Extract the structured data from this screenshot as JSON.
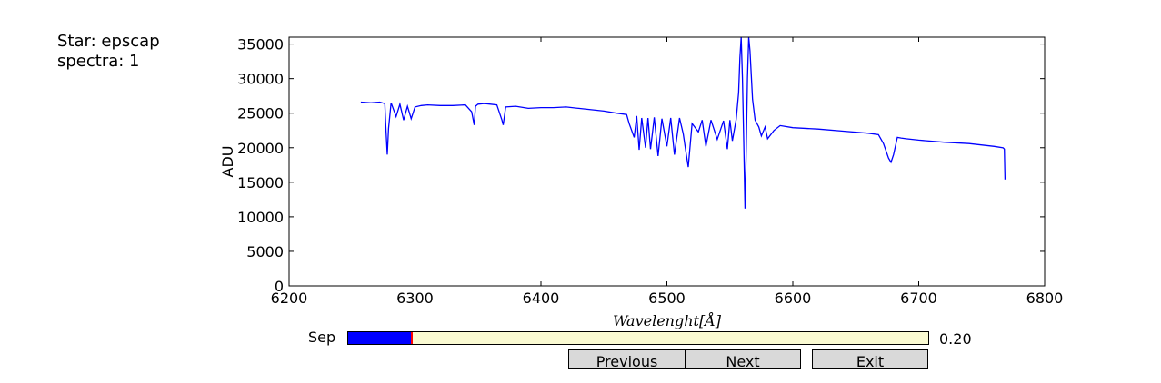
{
  "info": {
    "star": "Star: epscap",
    "spectra": "spectra: 1"
  },
  "slider": {
    "label": "Sep",
    "value_text": "0.20",
    "fraction": 0.11,
    "fill_color": "#0000ff",
    "marker_color": "#ff0000",
    "track_color": "#fafad2"
  },
  "buttons": {
    "previous": "Previous",
    "next": "Next",
    "exit": "Exit"
  },
  "chart_data": {
    "type": "line",
    "title": "",
    "xlabel": "Wavelenght[Å]",
    "ylabel": "ADU",
    "xlim": [
      6200,
      6800
    ],
    "ylim": [
      0,
      36000
    ],
    "xticks": [
      6200,
      6300,
      6400,
      6500,
      6600,
      6700,
      6800
    ],
    "yticks": [
      0,
      5000,
      10000,
      15000,
      20000,
      25000,
      30000,
      35000
    ],
    "grid": false,
    "color": "#0000ff",
    "series": [
      {
        "x": [
          6257,
          6265,
          6272,
          6276,
          6277,
          6278,
          6279,
          6281,
          6285,
          6288,
          6291,
          6294,
          6297,
          6300,
          6305,
          6310,
          6320,
          6330,
          6340,
          6345,
          6347,
          6348,
          6350,
          6355,
          6360,
          6365,
          6369,
          6370,
          6372,
          6380,
          6390,
          6400,
          6410,
          6420,
          6430,
          6440,
          6450,
          6460,
          6468,
          6470,
          6474,
          6476,
          6478,
          6480,
          6483,
          6485,
          6487,
          6490,
          6493,
          6496,
          6500,
          6503,
          6506,
          6510,
          6513,
          6515,
          6517,
          6520,
          6525,
          6528,
          6531,
          6535,
          6540,
          6545,
          6548,
          6550,
          6552,
          6555,
          6557,
          6558,
          6559,
          6560,
          6561,
          6562,
          6563,
          6564,
          6565,
          6566,
          6568,
          6570,
          6573,
          6575,
          6578,
          6580,
          6585,
          6590,
          6600,
          6620,
          6640,
          6660,
          6668,
          6672,
          6676,
          6678,
          6680,
          6683,
          6686,
          6690,
          6700,
          6720,
          6740,
          6760,
          6767,
          6768,
          6768.5
        ],
        "y": [
          26600,
          26500,
          26600,
          26400,
          22500,
          19000,
          22800,
          26500,
          24500,
          26300,
          24000,
          26000,
          24200,
          25900,
          26100,
          26200,
          26100,
          26100,
          26200,
          25200,
          23300,
          26000,
          26300,
          26400,
          26300,
          26200,
          24000,
          23300,
          25900,
          26000,
          25700,
          25800,
          25800,
          25900,
          25700,
          25500,
          25300,
          25000,
          24800,
          23500,
          21500,
          24600,
          19700,
          24300,
          20000,
          24300,
          19800,
          24400,
          18800,
          24200,
          20200,
          24300,
          19000,
          24300,
          22000,
          19500,
          17200,
          23500,
          22300,
          24000,
          20200,
          24000,
          21200,
          23900,
          19800,
          24000,
          21000,
          24100,
          28000,
          33000,
          36000,
          30000,
          21000,
          11200,
          20000,
          30000,
          36000,
          34000,
          27000,
          24000,
          23000,
          21700,
          23000,
          21300,
          22500,
          23200,
          22900,
          22700,
          22400,
          22100,
          21900,
          20600,
          18500,
          17900,
          19000,
          21500,
          21400,
          21300,
          21100,
          20800,
          20600,
          20200,
          20000,
          19800,
          15400
        ]
      }
    ]
  }
}
